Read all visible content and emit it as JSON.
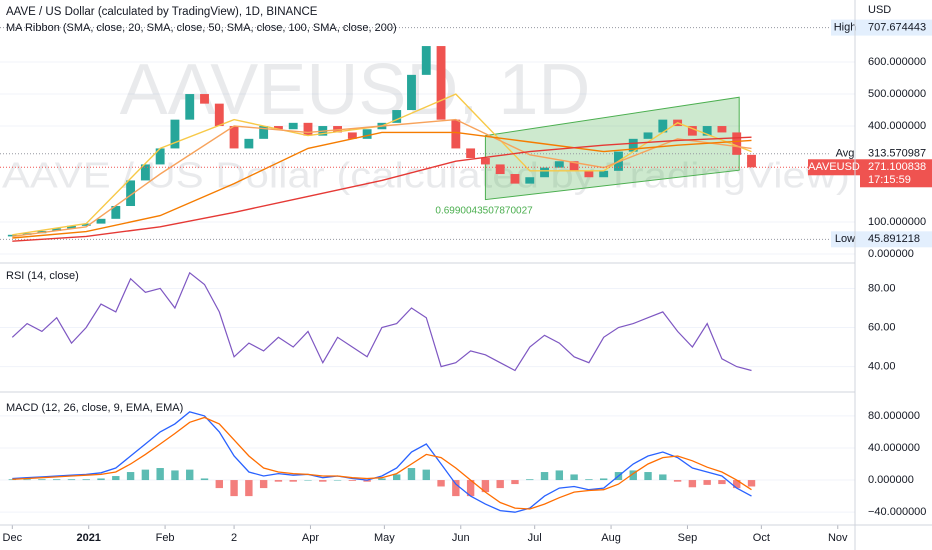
{
  "chart_data": [
    {
      "type": "candlestick",
      "title": "AAVE / US Dollar (calculated by TradingView), 1D, BINANCE",
      "subtitle": "MA Ribbon (SMA, close, 20, SMA, close, 50, SMA, close, 100, SMA, close, 200)",
      "watermark": "AAVEUSD, 1D",
      "watermark_subtitle": "AAVE / US Dollar (calculated by TradingView)",
      "currency": "USD",
      "xlim": [
        -5,
        342
      ],
      "ylim": [
        -25,
        794
      ],
      "yticks": [
        {
          "value": 0,
          "label": "0.000000"
        },
        {
          "value": 100,
          "label": "100.000000"
        },
        {
          "value": 400,
          "label": "400.000000"
        },
        {
          "value": 500,
          "label": "500.000000"
        },
        {
          "value": 600,
          "label": "600.000000"
        }
      ],
      "grid": true,
      "up_color": "#26a69a",
      "down_color": "#ef5350",
      "x": [
        0,
        6,
        12,
        18,
        24,
        30,
        36,
        42,
        48,
        54,
        60,
        66,
        72,
        78,
        84,
        90,
        96,
        102,
        108,
        114,
        120,
        126,
        132,
        138,
        144,
        150,
        156,
        162,
        168,
        174,
        180,
        186,
        192,
        198,
        204,
        210,
        216,
        222,
        228,
        234,
        240,
        246,
        252,
        258,
        264,
        270,
        276,
        282,
        288,
        294,
        300
      ],
      "open": [
        55,
        60,
        65,
        72,
        80,
        88,
        95,
        110,
        150,
        230,
        280,
        330,
        420,
        500,
        470,
        400,
        330,
        360,
        400,
        390,
        410,
        370,
        400,
        380,
        360,
        390,
        410,
        450,
        560,
        650,
        420,
        330,
        300,
        280,
        250,
        220,
        240,
        270,
        290,
        260,
        240,
        260,
        320,
        360,
        380,
        420,
        400,
        370,
        400,
        380,
        310
      ],
      "high": {
        "label": "High",
        "value": 707.674443,
        "value_label": "707.674443"
      },
      "low": {
        "label": "Low",
        "value": 45.891218,
        "value_label": "45.891218"
      },
      "close": [
        60,
        65,
        72,
        80,
        88,
        95,
        110,
        150,
        230,
        280,
        330,
        420,
        500,
        470,
        400,
        330,
        360,
        400,
        390,
        410,
        370,
        400,
        380,
        360,
        390,
        410,
        450,
        560,
        650,
        420,
        330,
        300,
        280,
        250,
        220,
        240,
        270,
        290,
        260,
        240,
        260,
        320,
        360,
        380,
        420,
        400,
        370,
        400,
        380,
        310,
        271.100838
      ],
      "series": [
        {
          "color": "#f7c948",
          "x": [
            0,
            30,
            60,
            90,
            120,
            150,
            180,
            210,
            240,
            270,
            300
          ],
          "values": [
            60,
            95,
            330,
            420,
            370,
            400,
            500,
            260,
            260,
            410,
            320
          ]
        },
        {
          "color": "#f7a35c",
          "x": [
            0,
            30,
            60,
            90,
            120,
            150,
            180,
            210,
            240,
            270,
            300
          ],
          "values": [
            55,
            85,
            250,
            400,
            380,
            400,
            420,
            310,
            270,
            360,
            330
          ]
        },
        {
          "color": "#f57c00",
          "x": [
            0,
            30,
            60,
            90,
            120,
            150,
            180,
            210,
            240,
            270,
            300
          ],
          "values": [
            50,
            70,
            120,
            220,
            330,
            380,
            380,
            350,
            320,
            340,
            355
          ]
        },
        {
          "color": "#e53935",
          "x": [
            0,
            30,
            60,
            90,
            120,
            150,
            180,
            210,
            240,
            270,
            300
          ],
          "values": [
            40,
            55,
            85,
            130,
            180,
            230,
            290,
            320,
            340,
            355,
            365
          ]
        }
      ],
      "channel": {
        "x": [
          192,
          295
        ],
        "upper": [
          370,
          490
        ],
        "lower": [
          170,
          262
        ],
        "color": "#4caf50"
      },
      "annotation": {
        "text": "0.6990043507870027",
        "x": 192,
        "y": 135
      },
      "avg": {
        "label": "Avg",
        "value": 313.570987,
        "value_label": "313.570987"
      },
      "last": {
        "label": "AAVEUSD",
        "value": 271.100838,
        "value_label": "271.100838",
        "time": "17:15:59"
      }
    },
    {
      "type": "line",
      "title": "RSI (14, close)",
      "xlim": [
        -5,
        342
      ],
      "ylim": [
        28,
        92
      ],
      "yticks": [
        {
          "value": 40,
          "label": "40.00"
        },
        {
          "value": 60,
          "label": "60.00"
        },
        {
          "value": 80,
          "label": "80.00"
        }
      ],
      "color": "#7e57c2",
      "x": [
        0,
        6,
        12,
        18,
        24,
        30,
        36,
        42,
        48,
        54,
        60,
        66,
        72,
        78,
        84,
        90,
        96,
        102,
        108,
        114,
        120,
        126,
        132,
        138,
        144,
        150,
        156,
        162,
        168,
        174,
        180,
        186,
        192,
        198,
        204,
        210,
        216,
        222,
        228,
        234,
        240,
        246,
        252,
        258,
        264,
        270,
        276,
        282,
        288,
        294,
        300
      ],
      "values": [
        55,
        62,
        58,
        65,
        52,
        60,
        72,
        68,
        85,
        78,
        80,
        70,
        88,
        82,
        68,
        45,
        52,
        48,
        55,
        50,
        58,
        42,
        55,
        50,
        45,
        60,
        62,
        70,
        65,
        40,
        42,
        48,
        46,
        42,
        38,
        50,
        56,
        52,
        45,
        42,
        55,
        60,
        62,
        65,
        68,
        58,
        50,
        62,
        44,
        40,
        38
      ]
    },
    {
      "type": "macd",
      "title": "MACD (12, 26, close, 9, EMA, EMA)",
      "xlim": [
        -5,
        342
      ],
      "ylim": [
        -56,
        106
      ],
      "yticks": [
        {
          "value": -40,
          "label": "−40.000000"
        },
        {
          "value": 0,
          "label": "0.000000"
        },
        {
          "value": 40,
          "label": "40.000000"
        },
        {
          "value": 80,
          "label": "80.000000"
        }
      ],
      "xticks": [
        {
          "value": 0,
          "label": "Dec"
        },
        {
          "value": 31,
          "label": "2021"
        },
        {
          "value": 62,
          "label": "Feb"
        },
        {
          "value": 90,
          "label": "2"
        },
        {
          "value": 121,
          "label": "Apr"
        },
        {
          "value": 151,
          "label": "May"
        },
        {
          "value": 182,
          "label": "Jun"
        },
        {
          "value": 212,
          "label": "Jul"
        },
        {
          "value": 243,
          "label": "Aug"
        },
        {
          "value": 274,
          "label": "Sep"
        },
        {
          "value": 304,
          "label": "Oct"
        },
        {
          "value": 335,
          "label": "Nov"
        }
      ],
      "x": [
        0,
        6,
        12,
        18,
        24,
        30,
        36,
        42,
        48,
        54,
        60,
        66,
        72,
        78,
        84,
        90,
        96,
        102,
        108,
        114,
        120,
        126,
        132,
        138,
        144,
        150,
        156,
        162,
        168,
        174,
        180,
        186,
        192,
        198,
        204,
        210,
        216,
        222,
        228,
        234,
        240,
        246,
        252,
        258,
        264,
        270,
        276,
        282,
        288,
        294,
        300
      ],
      "macd": {
        "color": "#2962ff",
        "values": [
          2,
          3,
          4,
          5,
          6,
          7,
          9,
          15,
          30,
          45,
          60,
          70,
          85,
          80,
          60,
          30,
          10,
          5,
          8,
          6,
          7,
          3,
          5,
          2,
          0,
          5,
          15,
          35,
          45,
          20,
          -5,
          -20,
          -30,
          -38,
          -40,
          -35,
          -20,
          -10,
          -8,
          -12,
          -10,
          5,
          20,
          30,
          35,
          28,
          15,
          10,
          5,
          -10,
          -20
        ]
      },
      "signal": {
        "color": "#ff6d00",
        "values": [
          1,
          2,
          3,
          4,
          5,
          6,
          7,
          10,
          20,
          32,
          45,
          58,
          72,
          78,
          70,
          50,
          30,
          15,
          10,
          8,
          7,
          5,
          5,
          3,
          2,
          3,
          8,
          20,
          32,
          28,
          15,
          0,
          -15,
          -28,
          -35,
          -36,
          -30,
          -22,
          -15,
          -13,
          -12,
          -5,
          8,
          20,
          28,
          30,
          24,
          16,
          10,
          0,
          -12
        ]
      },
      "histogram": {
        "up_color": "#26a69a",
        "down_color": "#ef5350",
        "values": [
          1,
          1,
          1,
          1,
          1,
          1,
          2,
          5,
          10,
          13,
          15,
          12,
          13,
          2,
          -10,
          -20,
          -20,
          -10,
          -2,
          -2,
          0,
          -2,
          0,
          -1,
          -2,
          2,
          7,
          15,
          13,
          -8,
          -20,
          -20,
          -15,
          -10,
          -5,
          1,
          10,
          12,
          7,
          1,
          2,
          10,
          12,
          10,
          7,
          -2,
          -9,
          -6,
          -5,
          -10,
          -8
        ]
      }
    }
  ]
}
